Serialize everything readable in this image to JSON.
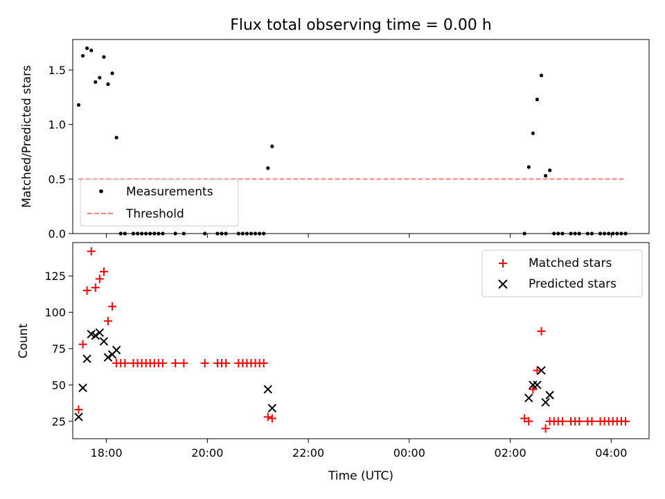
{
  "chart_data": {
    "title": "Flux total observing time = 0.00 h",
    "xlabel": "Time (UTC)",
    "x_ticks": [
      "18:00",
      "20:00",
      "22:00",
      "00:00",
      "02:00",
      "04:00"
    ],
    "x_range": [
      "17:20",
      "04:45"
    ],
    "top": {
      "type": "scatter",
      "ylabel": "Matched/Predicted stars",
      "ylim": [
        0,
        1.78
      ],
      "y_ticks": [
        "0.0",
        "0.5",
        "1.0",
        "1.5"
      ],
      "legend_position": "lower-left",
      "series": [
        {
          "name": "Measurements",
          "color": "#000000",
          "marker": "dot",
          "x": [
            "17:27",
            "17:32",
            "17:37",
            "17:42",
            "17:47",
            "17:52",
            "17:57",
            "18:02",
            "18:07",
            "18:12",
            "18:17",
            "18:22",
            "18:32",
            "18:37",
            "18:42",
            "18:47",
            "18:52",
            "18:57",
            "19:02",
            "19:07",
            "19:22",
            "19:32",
            "19:57",
            "20:12",
            "20:17",
            "20:22",
            "20:37",
            "20:42",
            "20:47",
            "20:52",
            "20:57",
            "21:02",
            "21:07",
            "21:12",
            "21:17",
            "02:17",
            "02:22",
            "02:27",
            "02:32",
            "02:37",
            "02:42",
            "02:47",
            "02:52",
            "02:57",
            "03:02",
            "03:12",
            "03:17",
            "03:22",
            "03:32",
            "03:37",
            "03:47",
            "03:52",
            "03:57",
            "04:02",
            "04:07",
            "04:12",
            "04:17"
          ],
          "y": [
            1.18,
            1.63,
            1.7,
            1.68,
            1.39,
            1.43,
            1.62,
            1.37,
            1.47,
            0.88,
            0,
            0,
            0,
            0,
            0,
            0,
            0,
            0,
            0,
            0,
            0,
            0,
            0,
            0,
            0,
            0,
            0,
            0,
            0,
            0,
            0,
            0,
            0,
            0.6,
            0.8,
            0,
            0.61,
            0.92,
            1.23,
            1.45,
            0.53,
            0.58,
            0,
            0,
            0,
            0,
            0,
            0,
            0,
            0,
            0,
            0,
            0,
            0,
            0,
            0,
            0
          ]
        },
        {
          "name": "Threshold",
          "color": "#ff7f7f",
          "style": "dashed",
          "x": [
            "17:27",
            "04:17"
          ],
          "y": [
            0.5,
            0.5
          ]
        }
      ]
    },
    "bottom": {
      "type": "scatter",
      "ylabel": "Count",
      "ylim": [
        13,
        148
      ],
      "y_ticks": [
        "25",
        "50",
        "75",
        "100",
        "125"
      ],
      "legend_position": "top-right",
      "series": [
        {
          "name": "Matched stars",
          "color": "#ff0000",
          "marker": "plus",
          "x": [
            "17:27",
            "17:32",
            "17:37",
            "17:42",
            "17:47",
            "17:52",
            "17:57",
            "18:02",
            "18:07",
            "18:12",
            "18:17",
            "18:22",
            "18:32",
            "18:37",
            "18:42",
            "18:47",
            "18:52",
            "18:57",
            "19:02",
            "19:07",
            "19:22",
            "19:32",
            "19:57",
            "20:12",
            "20:17",
            "20:22",
            "20:37",
            "20:42",
            "20:47",
            "20:52",
            "20:57",
            "21:02",
            "21:07",
            "21:12",
            "21:17",
            "02:17",
            "02:22",
            "02:27",
            "02:32",
            "02:37",
            "02:42",
            "02:47",
            "02:52",
            "02:57",
            "03:02",
            "03:12",
            "03:17",
            "03:22",
            "03:32",
            "03:37",
            "03:47",
            "03:52",
            "03:57",
            "04:02",
            "04:07",
            "04:12",
            "04:17"
          ],
          "y": [
            33,
            78,
            115,
            142,
            117,
            123,
            128,
            94,
            104,
            65,
            65,
            65,
            65,
            65,
            65,
            65,
            65,
            65,
            65,
            65,
            65,
            65,
            65,
            65,
            65,
            65,
            65,
            65,
            65,
            65,
            65,
            65,
            65,
            28,
            27,
            27,
            25,
            47,
            60,
            87,
            20,
            25,
            25,
            25,
            25,
            25,
            25,
            25,
            25,
            25,
            25,
            25,
            25,
            25,
            25,
            25,
            25
          ]
        },
        {
          "name": "Predicted stars",
          "color": "#000000",
          "marker": "x",
          "x": [
            "17:27",
            "17:32",
            "17:37",
            "17:42",
            "17:47",
            "17:52",
            "17:57",
            "18:02",
            "18:07",
            "18:12",
            "21:12",
            "21:17",
            "02:22",
            "02:27",
            "02:32",
            "02:37",
            "02:42",
            "02:47"
          ],
          "y": [
            28,
            48,
            68,
            85,
            84,
            86,
            80,
            69,
            71,
            74,
            47,
            34,
            41,
            50,
            50,
            60,
            38,
            43
          ]
        }
      ]
    }
  }
}
